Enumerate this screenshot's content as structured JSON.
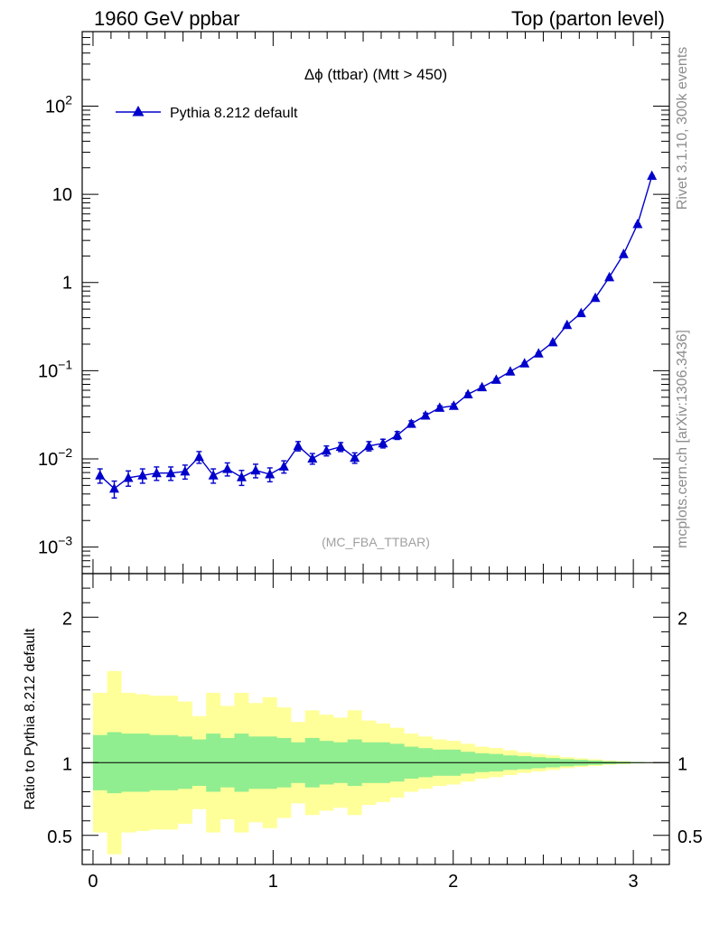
{
  "header": {
    "left": "1960 GeV ppbar",
    "right": "Top (parton level)"
  },
  "side_labels": {
    "rivet": "Rivet 3.1.10,  300k events",
    "mcplots": "mcplots.cern.ch [arXiv:1306.3436]"
  },
  "colors": {
    "series": "#0000cc",
    "band_inner": "#90ee90",
    "band_outer": "#ffff99",
    "ratio_line": "#000000"
  },
  "chart_data": [
    {
      "type": "line",
      "title": "Δϕ (ttbar) (Mtt > 450)",
      "watermark": "(MC_FBA_TTBAR)",
      "yscale": "log",
      "ylim": [
        0.0005,
        700
      ],
      "xlim": [
        -0.06,
        3.2
      ],
      "ytick_labels": [
        {
          "value": 0.001,
          "base": "10",
          "exp": "−3"
        },
        {
          "value": 0.01,
          "base": "10",
          "exp": "−2"
        },
        {
          "value": 0.1,
          "base": "10",
          "exp": "−1"
        },
        {
          "value": 1,
          "base": "1",
          "exp": ""
        },
        {
          "value": 10,
          "base": "10",
          "exp": ""
        },
        {
          "value": 100,
          "base": "10",
          "exp": "2"
        }
      ],
      "series": [
        {
          "name": "Pythia 8.212 default",
          "x": [
            0.039,
            0.118,
            0.196,
            0.275,
            0.353,
            0.432,
            0.511,
            0.589,
            0.668,
            0.746,
            0.825,
            0.903,
            0.982,
            1.06,
            1.139,
            1.218,
            1.296,
            1.375,
            1.453,
            1.532,
            1.61,
            1.689,
            1.767,
            1.846,
            1.925,
            2.003,
            2.082,
            2.16,
            2.239,
            2.317,
            2.396,
            2.474,
            2.553,
            2.632,
            2.71,
            2.789,
            2.867,
            2.946,
            3.024,
            3.103
          ],
          "y": [
            0.0065,
            0.0046,
            0.0061,
            0.0065,
            0.0069,
            0.0069,
            0.0072,
            0.0105,
            0.0065,
            0.0077,
            0.0062,
            0.0074,
            0.0067,
            0.0082,
            0.014,
            0.0101,
            0.0124,
            0.0137,
            0.0103,
            0.014,
            0.015,
            0.0185,
            0.025,
            0.031,
            0.038,
            0.04,
            0.054,
            0.065,
            0.079,
            0.098,
            0.121,
            0.157,
            0.21,
            0.33,
            0.45,
            0.67,
            1.15,
            2.1,
            4.6,
            16.2
          ],
          "yerr": [
            0.0012,
            0.001,
            0.0012,
            0.0012,
            0.0012,
            0.0012,
            0.0013,
            0.0016,
            0.0012,
            0.0013,
            0.0012,
            0.0013,
            0.0012,
            0.0013,
            0.0017,
            0.0014,
            0.0016,
            0.0016,
            0.0014,
            0.0017,
            0.0017,
            0.0019,
            0.002,
            0.002,
            0.002,
            0.002,
            0.002,
            0.002,
            0.002,
            0.002,
            0.002,
            0.002,
            0.003,
            0.004,
            0.005,
            0.006,
            0.01,
            0.02,
            0.04,
            0.1
          ]
        }
      ]
    },
    {
      "type": "area",
      "ylabel": "Ratio to Pythia 8.212 default",
      "ylim": [
        0.3,
        2.3
      ],
      "xlim": [
        -0.06,
        3.2
      ],
      "xticks": [
        0,
        1,
        2,
        3
      ],
      "xtick_labels": [
        "0",
        "1",
        "2",
        "3"
      ],
      "yticks": [
        0.5,
        1,
        2
      ],
      "ytick_labels": [
        "0.5",
        "1",
        "2"
      ],
      "x_edges": [
        0.0,
        0.0785,
        0.157,
        0.2355,
        0.314,
        0.3925,
        0.471,
        0.5495,
        0.628,
        0.7065,
        0.785,
        0.8635,
        0.942,
        1.0205,
        1.099,
        1.1775,
        1.256,
        1.3345,
        1.413,
        1.4915,
        1.57,
        1.6485,
        1.727,
        1.8055,
        1.884,
        1.9625,
        2.041,
        2.1195,
        2.198,
        2.2765,
        2.355,
        2.4335,
        2.512,
        2.5905,
        2.669,
        2.7475,
        2.826,
        2.9045,
        2.983,
        3.0615,
        3.14
      ],
      "reference": 1,
      "bands": [
        {
          "level": "inner",
          "low": [
            0.81,
            0.79,
            0.8,
            0.8,
            0.81,
            0.81,
            0.82,
            0.84,
            0.8,
            0.83,
            0.8,
            0.82,
            0.82,
            0.83,
            0.86,
            0.83,
            0.85,
            0.86,
            0.84,
            0.86,
            0.86,
            0.87,
            0.89,
            0.9,
            0.91,
            0.91,
            0.925,
            0.935,
            0.94,
            0.95,
            0.955,
            0.962,
            0.968,
            0.975,
            0.98,
            0.985,
            0.99,
            0.993,
            0.996,
            0.998
          ],
          "high": [
            1.19,
            1.21,
            1.2,
            1.2,
            1.19,
            1.19,
            1.18,
            1.16,
            1.2,
            1.17,
            1.2,
            1.18,
            1.18,
            1.17,
            1.14,
            1.17,
            1.15,
            1.14,
            1.16,
            1.14,
            1.14,
            1.13,
            1.11,
            1.1,
            1.09,
            1.09,
            1.075,
            1.065,
            1.06,
            1.05,
            1.045,
            1.038,
            1.032,
            1.025,
            1.02,
            1.015,
            1.01,
            1.007,
            1.004,
            1.002
          ]
        },
        {
          "level": "outer",
          "low": [
            0.52,
            0.37,
            0.52,
            0.53,
            0.54,
            0.54,
            0.58,
            0.68,
            0.52,
            0.61,
            0.52,
            0.59,
            0.55,
            0.62,
            0.72,
            0.64,
            0.67,
            0.69,
            0.64,
            0.71,
            0.73,
            0.76,
            0.8,
            0.82,
            0.84,
            0.85,
            0.87,
            0.89,
            0.9,
            0.915,
            0.93,
            0.94,
            0.95,
            0.962,
            0.97,
            0.977,
            0.985,
            0.99,
            0.995,
            0.998
          ],
          "high": [
            1.48,
            1.63,
            1.48,
            1.47,
            1.46,
            1.46,
            1.42,
            1.32,
            1.48,
            1.39,
            1.48,
            1.41,
            1.45,
            1.38,
            1.28,
            1.36,
            1.33,
            1.31,
            1.36,
            1.29,
            1.27,
            1.24,
            1.2,
            1.18,
            1.16,
            1.15,
            1.13,
            1.11,
            1.1,
            1.085,
            1.07,
            1.06,
            1.05,
            1.038,
            1.03,
            1.023,
            1.015,
            1.01,
            1.005,
            1.002
          ]
        }
      ]
    }
  ]
}
